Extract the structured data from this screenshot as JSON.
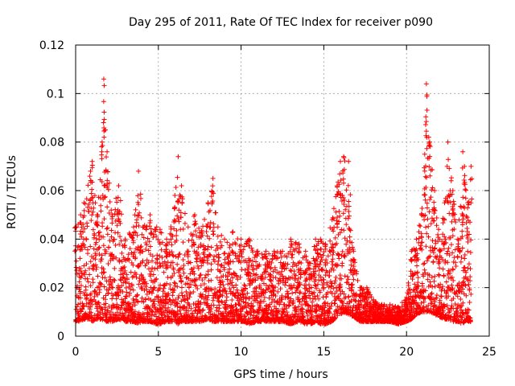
{
  "chart_data": {
    "type": "scatter",
    "title": "Day 295 of 2011, Rate Of TEC Index for receiver p090",
    "xlabel": "GPS time / hours",
    "ylabel": "ROTI / TECUs",
    "xlim": [
      0,
      25
    ],
    "ylim": [
      0,
      0.12
    ],
    "xticks": [
      0,
      5,
      10,
      15,
      20,
      25
    ],
    "yticks": [
      0,
      0.02,
      0.04,
      0.06,
      0.08,
      0.1,
      0.12
    ],
    "xtick_labels": [
      "0",
      "5",
      "10",
      "15",
      "20",
      "25"
    ],
    "ytick_labels": [
      "0",
      "0.02",
      "0.04",
      "0.06",
      "0.08",
      "0.1",
      "0.12"
    ],
    "grid": true,
    "marker": "+",
    "series": [
      {
        "color": "#ff0000",
        "envelope": {
          "x": [
            0.0,
            0.3,
            0.5,
            0.9,
            1.0,
            1.3,
            1.6,
            1.7,
            1.8,
            1.9,
            2.2,
            2.6,
            3.0,
            3.5,
            3.8,
            4.1,
            4.5,
            4.9,
            5.1,
            5.5,
            6.0,
            6.2,
            6.4,
            6.8,
            7.2,
            7.6,
            8.0,
            8.3,
            8.6,
            9.0,
            9.5,
            10.0,
            10.5,
            11.0,
            11.5,
            12.0,
            12.5,
            13.0,
            13.5,
            13.9,
            14.2,
            14.5,
            14.8,
            15.1,
            15.5,
            15.8,
            16.0,
            16.2,
            16.5,
            16.8,
            17.2,
            17.6,
            18.0,
            18.5,
            19.0,
            19.5,
            20.0,
            20.3,
            20.6,
            20.9,
            21.1,
            21.2,
            21.4,
            21.7,
            22.0,
            22.3,
            22.5,
            22.8,
            23.1,
            23.4,
            23.5,
            23.7,
            23.9
          ],
          "y_max": [
            0.045,
            0.05,
            0.055,
            0.068,
            0.072,
            0.05,
            0.08,
            0.106,
            0.085,
            0.076,
            0.05,
            0.062,
            0.04,
            0.045,
            0.068,
            0.045,
            0.05,
            0.045,
            0.044,
            0.04,
            0.058,
            0.074,
            0.062,
            0.045,
            0.05,
            0.043,
            0.055,
            0.065,
            0.045,
            0.04,
            0.043,
            0.04,
            0.04,
            0.035,
            0.035,
            0.035,
            0.035,
            0.04,
            0.038,
            0.035,
            0.03,
            0.04,
            0.04,
            0.038,
            0.048,
            0.062,
            0.072,
            0.074,
            0.072,
            0.035,
            0.02,
            0.02,
            0.015,
            0.013,
            0.013,
            0.012,
            0.016,
            0.035,
            0.04,
            0.05,
            0.075,
            0.104,
            0.08,
            0.06,
            0.04,
            0.055,
            0.08,
            0.06,
            0.04,
            0.076,
            0.07,
            0.055,
            0.07
          ],
          "y_min": [
            0.006,
            0.006,
            0.007,
            0.007,
            0.006,
            0.007,
            0.007,
            0.006,
            0.006,
            0.006,
            0.006,
            0.007,
            0.006,
            0.006,
            0.005,
            0.006,
            0.006,
            0.005,
            0.005,
            0.006,
            0.006,
            0.005,
            0.006,
            0.006,
            0.006,
            0.006,
            0.007,
            0.006,
            0.006,
            0.006,
            0.006,
            0.006,
            0.005,
            0.006,
            0.006,
            0.006,
            0.006,
            0.005,
            0.006,
            0.005,
            0.005,
            0.006,
            0.005,
            0.005,
            0.006,
            0.008,
            0.009,
            0.01,
            0.009,
            0.008,
            0.006,
            0.006,
            0.006,
            0.006,
            0.006,
            0.005,
            0.006,
            0.007,
            0.009,
            0.01,
            0.01,
            0.01,
            0.01,
            0.009,
            0.008,
            0.007,
            0.007,
            0.006,
            0.006,
            0.005,
            0.006,
            0.006,
            0.006
          ]
        }
      }
    ]
  }
}
